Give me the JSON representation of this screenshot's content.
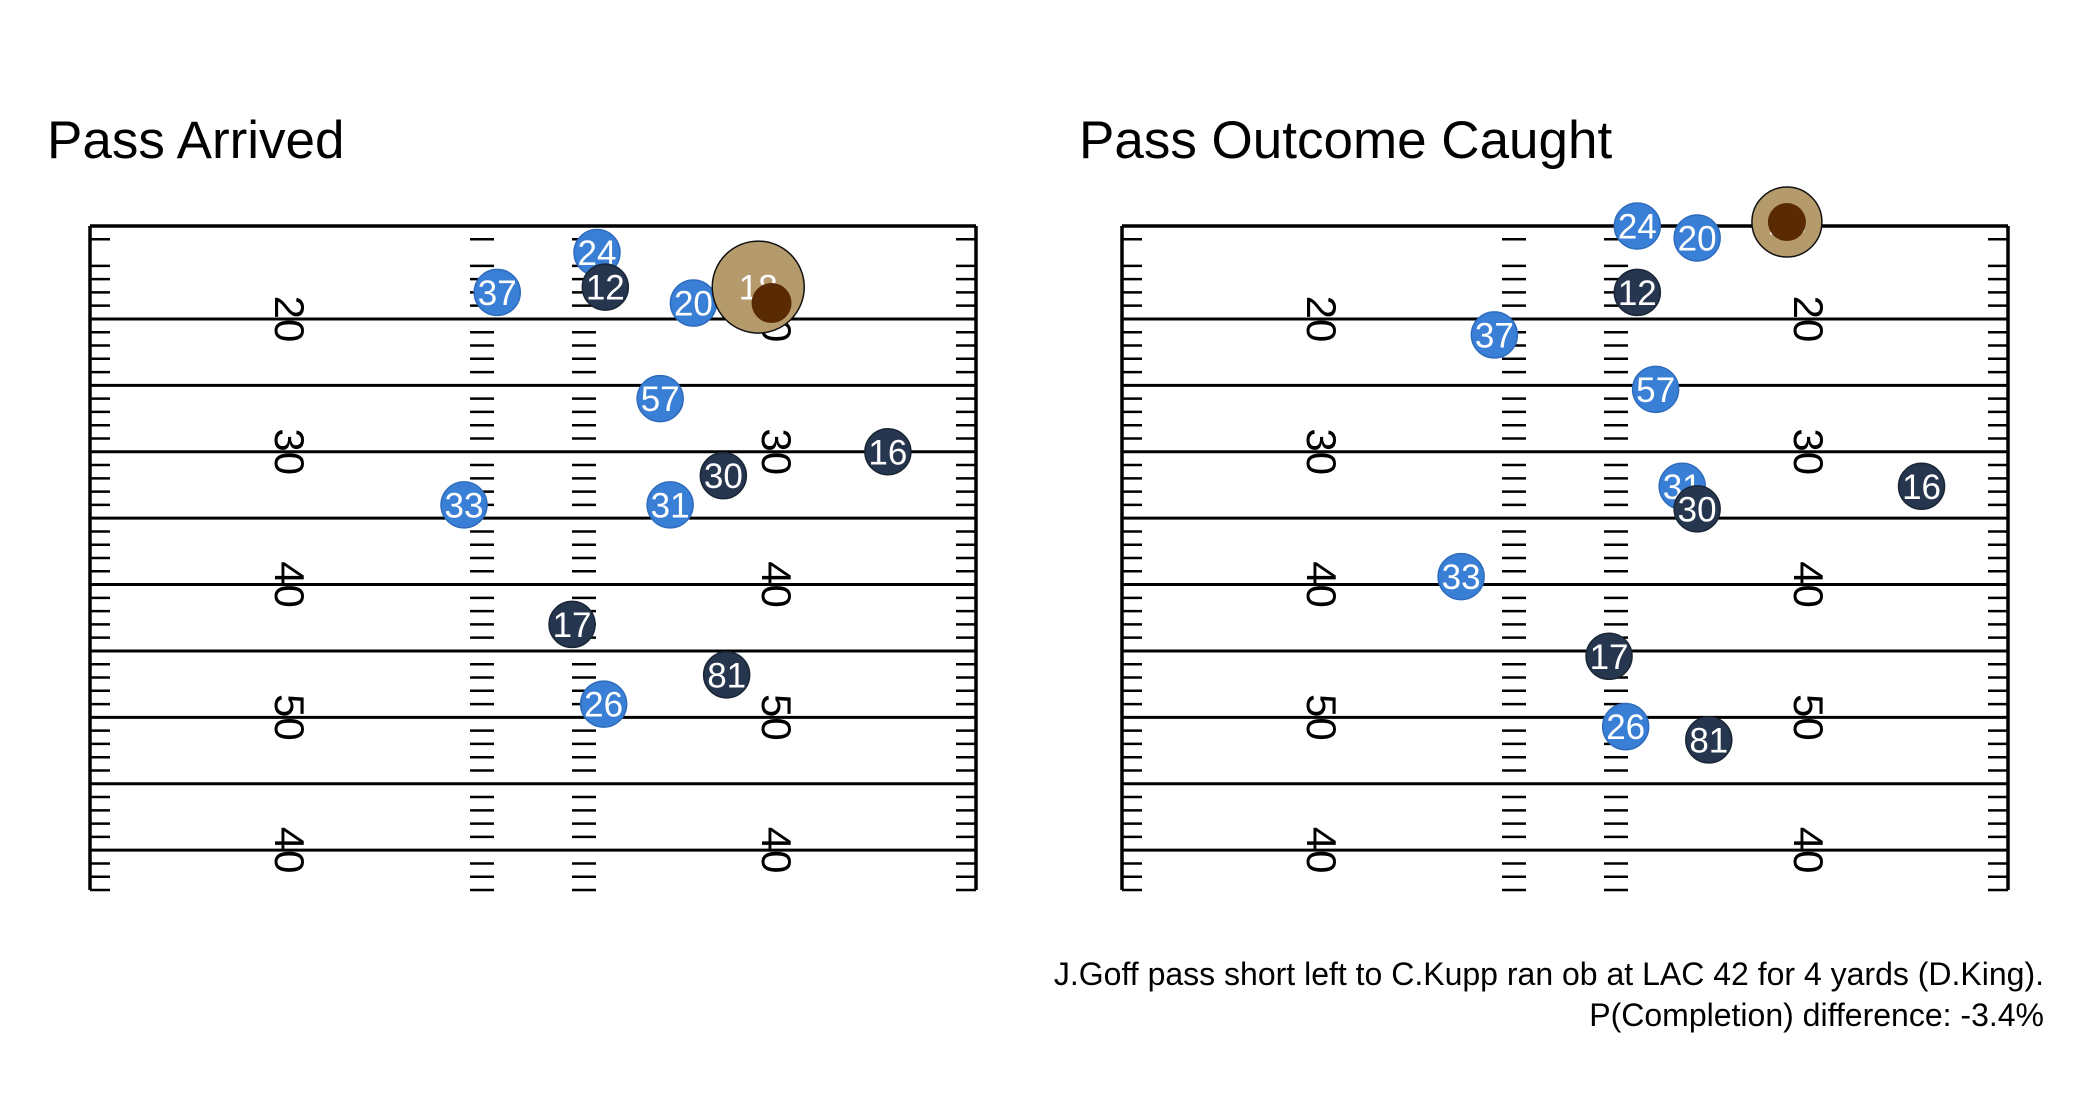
{
  "caption": {
    "line1": "J.Goff pass short left to C.Kupp ran ob at LAC 42 for 4 yards (D.King).",
    "line2": "P(Completion) difference: -3.4%"
  },
  "colors": {
    "defense": "#3a7fd6",
    "offense": "#26364e",
    "ball_carrier": "#b59a6c",
    "ball": "#5a2a05"
  },
  "yard_labels": [
    "20",
    "30",
    "40",
    "50",
    "40"
  ],
  "chart_data": [
    {
      "type": "scatter",
      "title": "Pass Arrived",
      "x_yardlines": [
        20,
        30,
        40,
        50,
        60
      ],
      "players": [
        {
          "number": "33",
          "team": "defense",
          "x": 22.5,
          "y": 34.0
        },
        {
          "number": "37",
          "team": "defense",
          "x": 24.5,
          "y": 18.0
        },
        {
          "number": "17",
          "team": "offense",
          "x": 29.0,
          "y": 43.0
        },
        {
          "number": "24",
          "team": "defense",
          "x": 30.5,
          "y": 15.0
        },
        {
          "number": "12",
          "team": "offense",
          "x": 31.0,
          "y": 17.6
        },
        {
          "number": "26",
          "team": "defense",
          "x": 30.9,
          "y": 49.0
        },
        {
          "number": "57",
          "team": "defense",
          "x": 34.3,
          "y": 26.0
        },
        {
          "number": "31",
          "team": "defense",
          "x": 34.9,
          "y": 34.0
        },
        {
          "number": "20",
          "team": "defense",
          "x": 36.3,
          "y": 18.8
        },
        {
          "number": "30",
          "team": "offense",
          "x": 38.1,
          "y": 31.8
        },
        {
          "number": "81",
          "team": "offense",
          "x": 38.3,
          "y": 46.8
        },
        {
          "number": "18",
          "team": "ball_carrier",
          "x": 40.2,
          "y": 17.6,
          "large": true
        },
        {
          "number": "",
          "team": "ball",
          "x": 41.0,
          "y": 18.8
        },
        {
          "number": "16",
          "team": "offense",
          "x": 48.0,
          "y": 30.0
        }
      ]
    },
    {
      "type": "scatter",
      "title": "Pass Outcome Caught",
      "x_yardlines": [
        20,
        30,
        40,
        50,
        60
      ],
      "players": [
        {
          "number": "33",
          "team": "defense",
          "x": 20.4,
          "y": 39.4
        },
        {
          "number": "37",
          "team": "defense",
          "x": 22.4,
          "y": 21.2
        },
        {
          "number": "17",
          "team": "offense",
          "x": 29.3,
          "y": 45.4
        },
        {
          "number": "26",
          "team": "defense",
          "x": 30.3,
          "y": 50.7
        },
        {
          "number": "24",
          "team": "defense",
          "x": 31.0,
          "y": 13.0
        },
        {
          "number": "12",
          "team": "offense",
          "x": 31.0,
          "y": 18.0
        },
        {
          "number": "57",
          "team": "defense",
          "x": 32.1,
          "y": 25.3
        },
        {
          "number": "31",
          "team": "defense",
          "x": 33.7,
          "y": 32.6
        },
        {
          "number": "30",
          "team": "offense",
          "x": 34.6,
          "y": 34.3
        },
        {
          "number": "20",
          "team": "defense",
          "x": 34.6,
          "y": 13.9
        },
        {
          "number": "81",
          "team": "offense",
          "x": 35.3,
          "y": 51.7
        },
        {
          "number": "18",
          "team": "ball_carrier",
          "x": 40.0,
          "y": 12.7,
          "large": true
        },
        {
          "number": "",
          "team": "ball",
          "x": 40.0,
          "y": 12.7
        },
        {
          "number": "16",
          "team": "offense",
          "x": 48.1,
          "y": 32.6
        }
      ]
    }
  ]
}
